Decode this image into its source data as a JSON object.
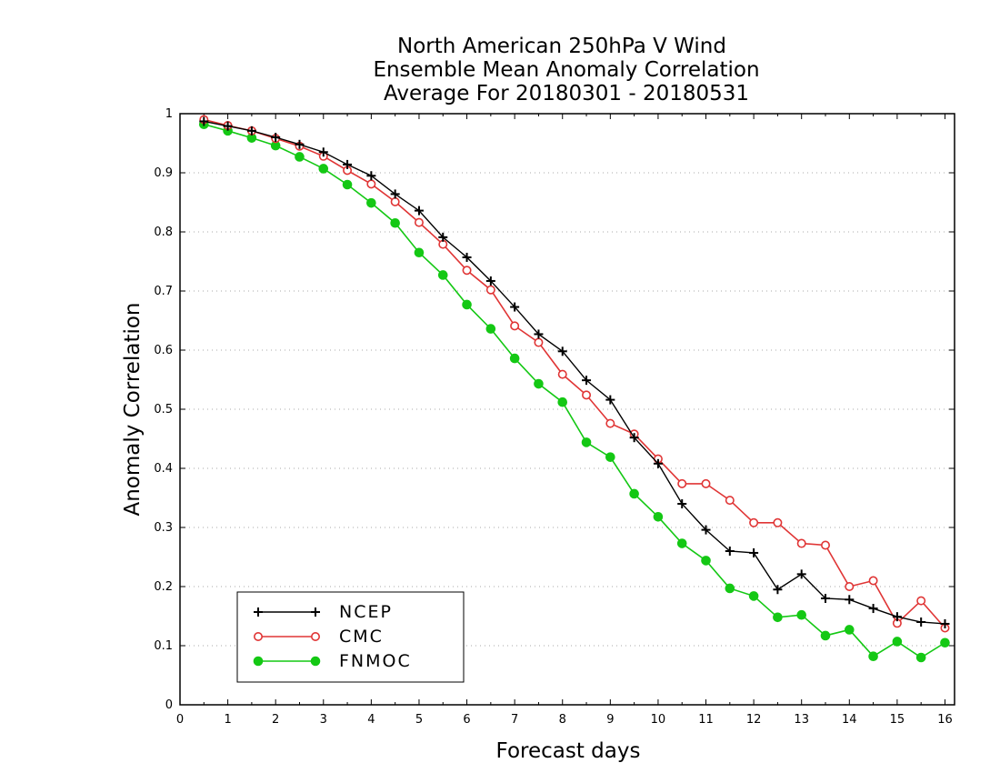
{
  "chart_data": {
    "type": "line",
    "title": [
      "North American 250hPa V Wind",
      "Ensemble Mean Anomaly Correlation",
      "Average For 20180301 - 20180531"
    ],
    "xlabel": "Forecast days",
    "ylabel": "Anomaly Correlation",
    "xlim": [
      0,
      16.2
    ],
    "ylim": [
      0,
      1
    ],
    "xticks": [
      "0",
      "1",
      "2",
      "3",
      "4",
      "5",
      "6",
      "7",
      "8",
      "9",
      "10",
      "11",
      "12",
      "13",
      "14",
      "15",
      "16"
    ],
    "yticks": [
      "0",
      "0.1",
      "0.2",
      "0.3",
      "0.4",
      "0.5",
      "0.6",
      "0.7",
      "0.8",
      "0.9",
      "1"
    ],
    "grid": "horizontal-dotted",
    "legend_position": "bottom-left",
    "x": [
      0.5,
      1,
      1.5,
      2,
      2.5,
      3,
      3.5,
      4,
      4.5,
      5,
      5.5,
      6,
      6.5,
      7,
      7.5,
      8,
      8.5,
      9,
      9.5,
      10,
      10.5,
      11,
      11.5,
      12,
      12.5,
      13,
      13.5,
      14,
      14.5,
      15,
      15.5,
      16
    ],
    "series": [
      {
        "name": "NCEP",
        "color": "#000000",
        "marker": "plus",
        "values": [
          0.987,
          0.979,
          0.971,
          0.96,
          0.948,
          0.935,
          0.914,
          0.895,
          0.864,
          0.836,
          0.791,
          0.757,
          0.717,
          0.673,
          0.627,
          0.598,
          0.549,
          0.516,
          0.452,
          0.408,
          0.34,
          0.296,
          0.26,
          0.257,
          0.195,
          0.221,
          0.18,
          0.178,
          0.163,
          0.149,
          0.14,
          0.137
        ]
      },
      {
        "name": "CMC",
        "color": "#e03535",
        "marker": "open-circle",
        "values": [
          0.99,
          0.98,
          0.971,
          0.958,
          0.945,
          0.928,
          0.904,
          0.881,
          0.851,
          0.816,
          0.779,
          0.735,
          0.702,
          0.641,
          0.613,
          0.559,
          0.524,
          0.476,
          0.458,
          0.416,
          0.374,
          0.374,
          0.346,
          0.308,
          0.308,
          0.273,
          0.27,
          0.2,
          0.21,
          0.138,
          0.176,
          0.13
        ]
      },
      {
        "name": "FNMOC",
        "color": "#14c814",
        "marker": "filled-circle",
        "values": [
          0.982,
          0.971,
          0.959,
          0.946,
          0.927,
          0.907,
          0.88,
          0.849,
          0.815,
          0.765,
          0.727,
          0.677,
          0.636,
          0.586,
          0.543,
          0.512,
          0.444,
          0.419,
          0.357,
          0.318,
          0.273,
          0.244,
          0.197,
          0.184,
          0.148,
          0.152,
          0.117,
          0.127,
          0.082,
          0.107,
          0.08,
          0.105
        ]
      }
    ]
  }
}
